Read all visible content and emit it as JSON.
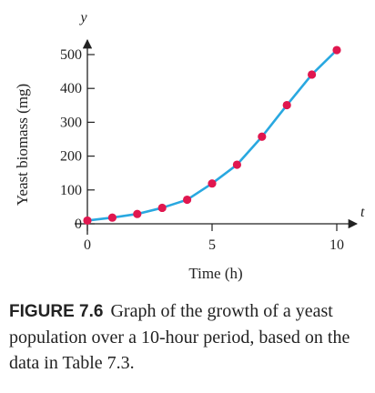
{
  "chart_data": {
    "type": "line",
    "xlabel": "Time (h)",
    "ylabel": "Yeast biomass (mg)",
    "x_axis_letter": "t",
    "y_axis_letter": "y",
    "xlim": [
      0,
      10
    ],
    "ylim": [
      0,
      500
    ],
    "x_ticks": [
      0,
      5,
      10
    ],
    "y_ticks": [
      0,
      100,
      200,
      300,
      400,
      500
    ],
    "grid": false,
    "line_color": "#29a8e0",
    "marker_color": "#e0174f",
    "series": [
      {
        "x": [
          0,
          1,
          2,
          3,
          4,
          5,
          6,
          7,
          8,
          9,
          10
        ],
        "values": [
          9.6,
          18.3,
          29.0,
          47.2,
          71.1,
          119.1,
          174.6,
          257.3,
          350.7,
          441.0,
          513.3
        ]
      }
    ]
  },
  "caption": {
    "label": "FIGURE 7.6",
    "text": "Graph of the growth of a yeast population over a 10-hour period, based on the data in Table 7.3."
  }
}
